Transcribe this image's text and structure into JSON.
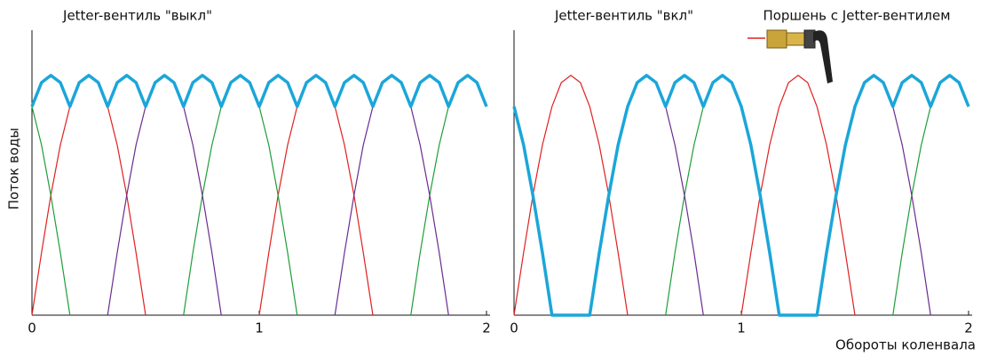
{
  "chart_data": [
    {
      "type": "line",
      "title": "Jetter-вентиль \"выкл\"",
      "y_label": "Поток воды",
      "xlim": [
        0,
        2
      ],
      "xticks": [
        0,
        1,
        2
      ],
      "ylim": [
        0,
        1.17
      ],
      "x": [
        0,
        0.042,
        0.083,
        0.125,
        0.167,
        0.208,
        0.25,
        0.292,
        0.333,
        0.375,
        0.417,
        0.458,
        0.5,
        0.542,
        0.583,
        0.625,
        0.667,
        0.708,
        0.75,
        0.792,
        0.833,
        0.875,
        0.917,
        0.958,
        1,
        1.042,
        1.083,
        1.125,
        1.167,
        1.208,
        1.25,
        1.292,
        1.333,
        1.375,
        1.417,
        1.458,
        1.5,
        1.542,
        1.583,
        1.625,
        1.667,
        1.708,
        1.75,
        1.792,
        1.833,
        1.875,
        1.917,
        1.958,
        2
      ],
      "series": [
        {
          "color": "#e0201f",
          "width": 1.2,
          "values": [
            0,
            0.26,
            0.5,
            0.71,
            0.87,
            0.97,
            1,
            0.97,
            0.87,
            0.71,
            0.5,
            0.26,
            0,
            null,
            null,
            null,
            null,
            null,
            null,
            null,
            null,
            null,
            null,
            null,
            0,
            0.26,
            0.5,
            0.71,
            0.87,
            0.97,
            1,
            0.97,
            0.87,
            0.71,
            0.5,
            0.26,
            0,
            null,
            null,
            null,
            null,
            null,
            null,
            null,
            null,
            null,
            null,
            null,
            null
          ]
        },
        {
          "color": "#1e9e3a",
          "width": 1.2,
          "values": [
            0.87,
            0.71,
            0.5,
            0.26,
            0,
            null,
            null,
            null,
            null,
            null,
            null,
            null,
            null,
            null,
            null,
            null,
            0,
            0.26,
            0.5,
            0.71,
            0.87,
            0.97,
            1,
            0.97,
            0.87,
            0.71,
            0.5,
            0.26,
            0,
            null,
            null,
            null,
            null,
            null,
            null,
            null,
            null,
            null,
            null,
            null,
            0,
            0.26,
            0.5,
            0.71,
            0.87,
            0.97,
            1,
            0.97,
            0.87
          ]
        },
        {
          "color": "#6a2c8e",
          "width": 1.2,
          "values": [
            null,
            null,
            null,
            null,
            null,
            null,
            null,
            null,
            0,
            0.26,
            0.5,
            0.71,
            0.87,
            0.97,
            1,
            0.97,
            0.87,
            0.71,
            0.5,
            0.26,
            0,
            null,
            null,
            null,
            null,
            null,
            null,
            null,
            null,
            null,
            null,
            null,
            0,
            0.26,
            0.5,
            0.71,
            0.87,
            0.97,
            1,
            0.97,
            0.87,
            0.71,
            0.5,
            0.26,
            0,
            null,
            null,
            null,
            null
          ]
        },
        {
          "color": "#1ba6d9",
          "width": 3.5,
          "values": [
            0.87,
            0.97,
            1,
            0.97,
            0.87,
            0.97,
            1,
            0.97,
            0.87,
            0.97,
            1,
            0.97,
            0.87,
            0.97,
            1,
            0.97,
            0.87,
            0.97,
            1,
            0.97,
            0.87,
            0.97,
            1,
            0.97,
            0.87,
            0.97,
            1,
            0.97,
            0.87,
            0.97,
            1,
            0.97,
            0.87,
            0.97,
            1,
            0.97,
            0.87,
            0.97,
            1,
            0.97,
            0.87,
            0.97,
            1,
            0.97,
            0.87,
            0.97,
            1,
            0.97,
            0.87
          ]
        }
      ]
    },
    {
      "type": "line",
      "title": "Jetter-вентиль \"вкл\"",
      "annotation": "Поршень с Jetter-вентилем",
      "x_label": "Обороты коленвала",
      "xlim": [
        0,
        2
      ],
      "xticks": [
        0,
        1,
        2
      ],
      "ylim": [
        0,
        1.17
      ],
      "x": [
        0,
        0.042,
        0.083,
        0.125,
        0.167,
        0.208,
        0.25,
        0.292,
        0.333,
        0.375,
        0.417,
        0.458,
        0.5,
        0.542,
        0.583,
        0.625,
        0.667,
        0.708,
        0.75,
        0.792,
        0.833,
        0.875,
        0.917,
        0.958,
        1,
        1.042,
        1.083,
        1.125,
        1.167,
        1.208,
        1.25,
        1.292,
        1.333,
        1.375,
        1.417,
        1.458,
        1.5,
        1.542,
        1.583,
        1.625,
        1.667,
        1.708,
        1.75,
        1.792,
        1.833,
        1.875,
        1.917,
        1.958,
        2
      ],
      "series": [
        {
          "color": "#e0201f",
          "width": 1.2,
          "values": [
            0,
            0.26,
            0.5,
            0.71,
            0.87,
            0.97,
            1,
            0.97,
            0.87,
            0.71,
            0.5,
            0.26,
            0,
            null,
            null,
            null,
            null,
            null,
            null,
            null,
            null,
            null,
            null,
            null,
            0,
            0.26,
            0.5,
            0.71,
            0.87,
            0.97,
            1,
            0.97,
            0.87,
            0.71,
            0.5,
            0.26,
            0,
            null,
            null,
            null,
            null,
            null,
            null,
            null,
            null,
            null,
            null,
            null,
            null
          ]
        },
        {
          "color": "#1e9e3a",
          "width": 1.2,
          "values": [
            0.87,
            0.71,
            0.5,
            0.26,
            0,
            null,
            null,
            null,
            null,
            null,
            null,
            null,
            null,
            null,
            null,
            null,
            0,
            0.26,
            0.5,
            0.71,
            0.87,
            0.97,
            1,
            0.97,
            0.87,
            0.71,
            0.5,
            0.26,
            0,
            null,
            null,
            null,
            null,
            null,
            null,
            null,
            null,
            null,
            null,
            null,
            0,
            0.26,
            0.5,
            0.71,
            0.87,
            0.97,
            1,
            0.97,
            0.87
          ]
        },
        {
          "color": "#6a2c8e",
          "width": 1.2,
          "values": [
            null,
            null,
            null,
            null,
            null,
            null,
            null,
            null,
            0,
            0.26,
            0.5,
            0.71,
            0.87,
            0.97,
            1,
            0.97,
            0.87,
            0.71,
            0.5,
            0.26,
            0,
            null,
            null,
            null,
            null,
            null,
            null,
            null,
            null,
            null,
            null,
            null,
            0,
            0.26,
            0.5,
            0.71,
            0.87,
            0.97,
            1,
            0.97,
            0.87,
            0.71,
            0.5,
            0.26,
            0,
            null,
            null,
            null,
            null
          ]
        },
        {
          "color": "#1ba6d9",
          "width": 3.5,
          "values": [
            0.87,
            0.71,
            0.5,
            0.26,
            0,
            0,
            0,
            0,
            0,
            0.26,
            0.5,
            0.71,
            0.87,
            0.97,
            1,
            0.97,
            0.87,
            0.97,
            1,
            0.97,
            0.87,
            0.97,
            1,
            0.97,
            0.87,
            0.71,
            0.5,
            0.26,
            0,
            0,
            0,
            0,
            0,
            0.26,
            0.5,
            0.71,
            0.87,
            0.97,
            1,
            0.97,
            0.87,
            0.97,
            1,
            0.97,
            0.87,
            0.97,
            1,
            0.97,
            0.87
          ]
        }
      ]
    }
  ]
}
